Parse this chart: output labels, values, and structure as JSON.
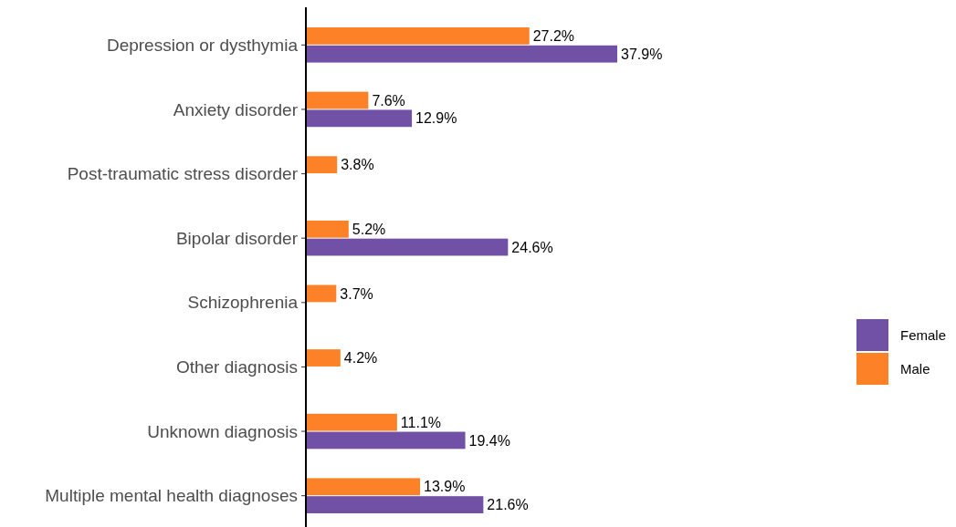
{
  "chart_data": {
    "type": "bar",
    "orientation": "horizontal",
    "categories": [
      "Depression or dysthymia",
      "Anxiety disorder",
      "Post-traumatic stress disorder",
      "Bipolar disorder",
      "Schizophrenia",
      "Other diagnosis",
      "Unknown diagnosis",
      "Multiple mental health diagnoses"
    ],
    "series": [
      {
        "name": "Female",
        "color": "#7051a5",
        "values": [
          37.9,
          12.9,
          null,
          24.6,
          null,
          null,
          19.4,
          21.6
        ],
        "value_labels": [
          "37.9%",
          "12.9%",
          null,
          "24.6%",
          null,
          null,
          "19.4%",
          "21.6%"
        ]
      },
      {
        "name": "Male",
        "color": "#fd8126",
        "values": [
          27.2,
          7.6,
          3.8,
          5.2,
          3.7,
          4.2,
          11.1,
          13.9
        ],
        "value_labels": [
          "27.2%",
          "7.6%",
          "3.8%",
          "5.2%",
          "3.7%",
          "4.2%",
          "11.1%",
          "13.9%"
        ]
      }
    ],
    "legend": "right"
  }
}
